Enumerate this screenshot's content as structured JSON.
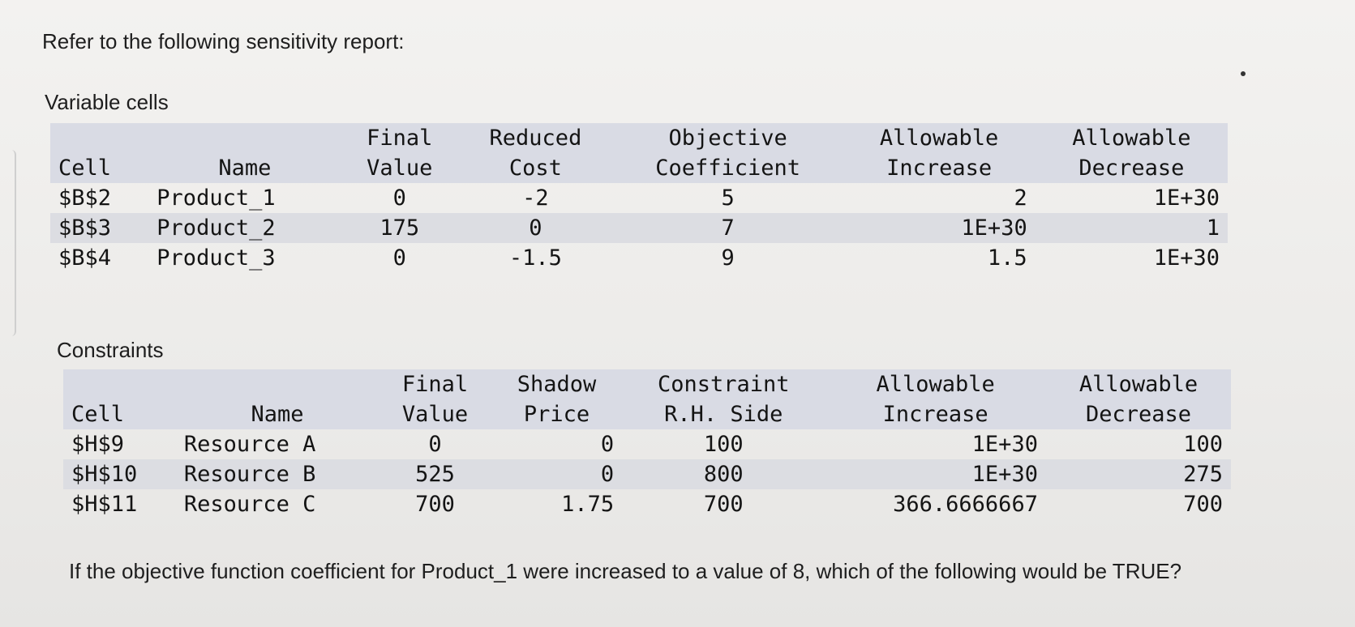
{
  "intro": "Refer to the following sensitivity report:",
  "variable_cells": {
    "heading": "Variable cells",
    "headers": {
      "cell": "Cell",
      "name": "Name",
      "final_1": "Final",
      "final_2": "Value",
      "reduced_1": "Reduced",
      "reduced_2": "Cost",
      "obj_1": "Objective",
      "obj_2": "Coefficient",
      "inc_1": "Allowable",
      "inc_2": "Increase",
      "dec_1": "Allowable",
      "dec_2": "Decrease"
    },
    "rows": [
      {
        "cell": "$B$2",
        "name": "Product_1",
        "final": "0",
        "reduced": "-2",
        "obj": "5",
        "inc": "2",
        "dec": "1E+30"
      },
      {
        "cell": "$B$3",
        "name": "Product_2",
        "final": "175",
        "reduced": "0",
        "obj": "7",
        "inc": "1E+30",
        "dec": "1"
      },
      {
        "cell": "$B$4",
        "name": "Product_3",
        "final": "0",
        "reduced": "-1.5",
        "obj": "9",
        "inc": "1.5",
        "dec": "1E+30"
      }
    ]
  },
  "constraints": {
    "heading": "Constraints",
    "headers": {
      "cell": "Cell",
      "name": "Name",
      "final_1": "Final",
      "final_2": "Value",
      "shadow_1": "Shadow",
      "shadow_2": "Price",
      "rhs_1": "Constraint",
      "rhs_2": "R.H. Side",
      "inc_1": "Allowable",
      "inc_2": "Increase",
      "dec_1": "Allowable",
      "dec_2": "Decrease"
    },
    "rows": [
      {
        "cell": "$H$9",
        "name": "Resource A",
        "final": "0",
        "shadow": "0",
        "rhs": "100",
        "inc": "1E+30",
        "dec": "100"
      },
      {
        "cell": "$H$10",
        "name": "Resource B",
        "final": "525",
        "shadow": "0",
        "rhs": "800",
        "inc": "1E+30",
        "dec": "275"
      },
      {
        "cell": "$H$11",
        "name": "Resource C",
        "final": "700",
        "shadow": "1.75",
        "rhs": "700",
        "inc": "366.6666667",
        "dec": "700"
      }
    ]
  },
  "question": "If the objective function coefficient for Product_1 were increased to a value of 8, which of the following would be TRUE?"
}
